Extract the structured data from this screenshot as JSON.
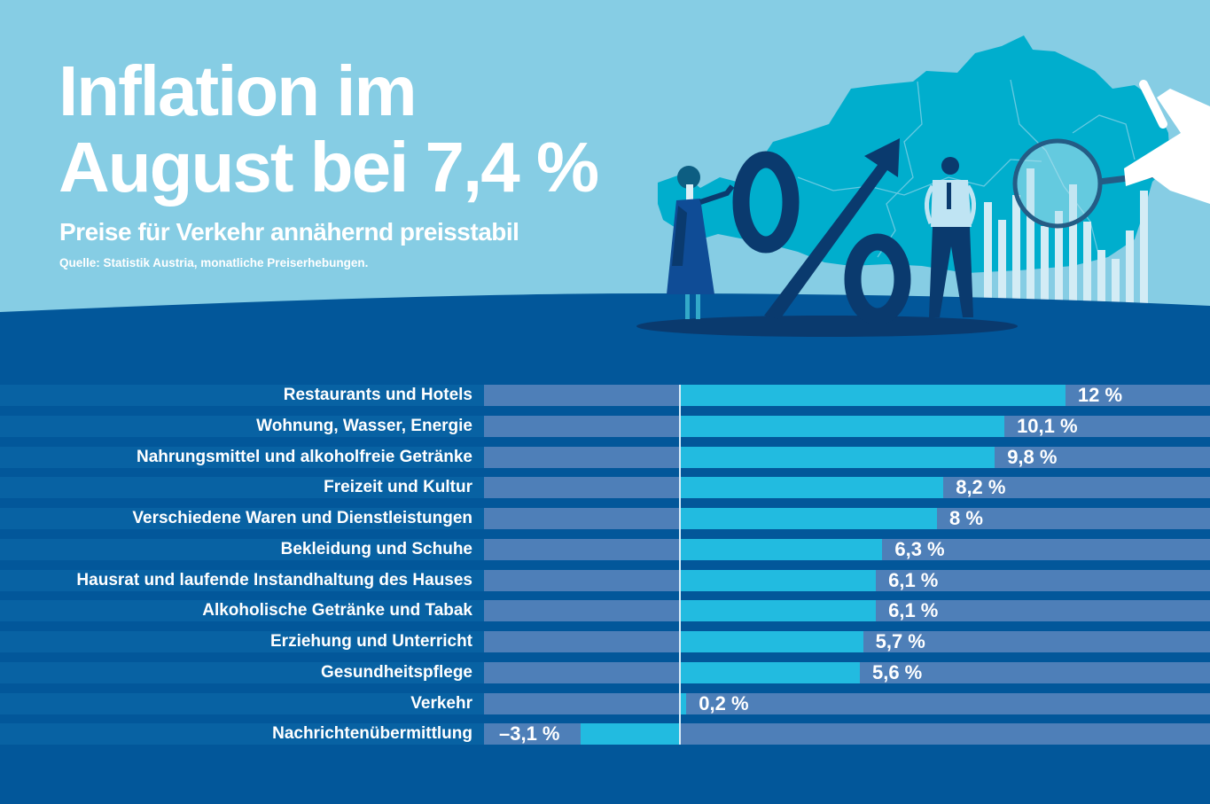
{
  "header": {
    "title_line1": "Inflation im",
    "title_line2": "August bei 7,4 %",
    "subtitle": "Preise für Verkehr annähernd preisstabil",
    "source": "Quelle: Statistik Austria, monatliche Preiserhebungen."
  },
  "colors": {
    "sky": "#86CDE4",
    "map": "#00AECD",
    "background": "#02579A",
    "label_band": "#0862A3",
    "track": "#4E7FB8",
    "bar": "#22BBE0",
    "dark_navy": "#0A3A6E"
  },
  "illustration": {
    "description": "Woman and man standing beside a large percent sign with an upward arrow, a map of Austria, a bar graph and a hand holding a magnifying glass",
    "icons": [
      "percent-sign-icon",
      "upward-arrow-icon",
      "woman-figure-icon",
      "man-figure-icon",
      "austria-map-icon",
      "magnifying-glass-icon",
      "hand-icon",
      "bar-graph-icon"
    ]
  },
  "chart_data": {
    "type": "bar",
    "orientation": "horizontal",
    "title": "Inflation im August bei 7,4 %",
    "subtitle": "Preise für Verkehr annähernd preisstabil",
    "unit": "%",
    "xlim": [
      -6.1,
      16.5
    ],
    "zero_line": true,
    "grid": false,
    "legend": "none",
    "categories": [
      "Restaurants und Hotels",
      "Wohnung, Wasser, Energie",
      "Nahrungsmittel und alkoholfreie Getränke",
      "Freizeit und Kultur",
      "Verschiedene Waren und Dienstleistungen",
      "Bekleidung und Schuhe",
      "Hausrat und laufende Instandhaltung des Hauses",
      "Alkoholische Getränke und Tabak",
      "Erziehung und Unterricht",
      "Gesundheitspflege",
      "Verkehr",
      "Nachrichtenübermittlung"
    ],
    "values": [
      12,
      10.1,
      9.8,
      8.2,
      8,
      6.3,
      6.1,
      6.1,
      5.7,
      5.6,
      0.2,
      -3.1
    ],
    "value_labels": [
      "12 %",
      "10,1 %",
      "9,8 %",
      "8,2 %",
      "8 %",
      "6,3 %",
      "6,1 %",
      "6,1 %",
      "5,7 %",
      "5,6 %",
      "0,2 %",
      "–3,1 %"
    ]
  }
}
